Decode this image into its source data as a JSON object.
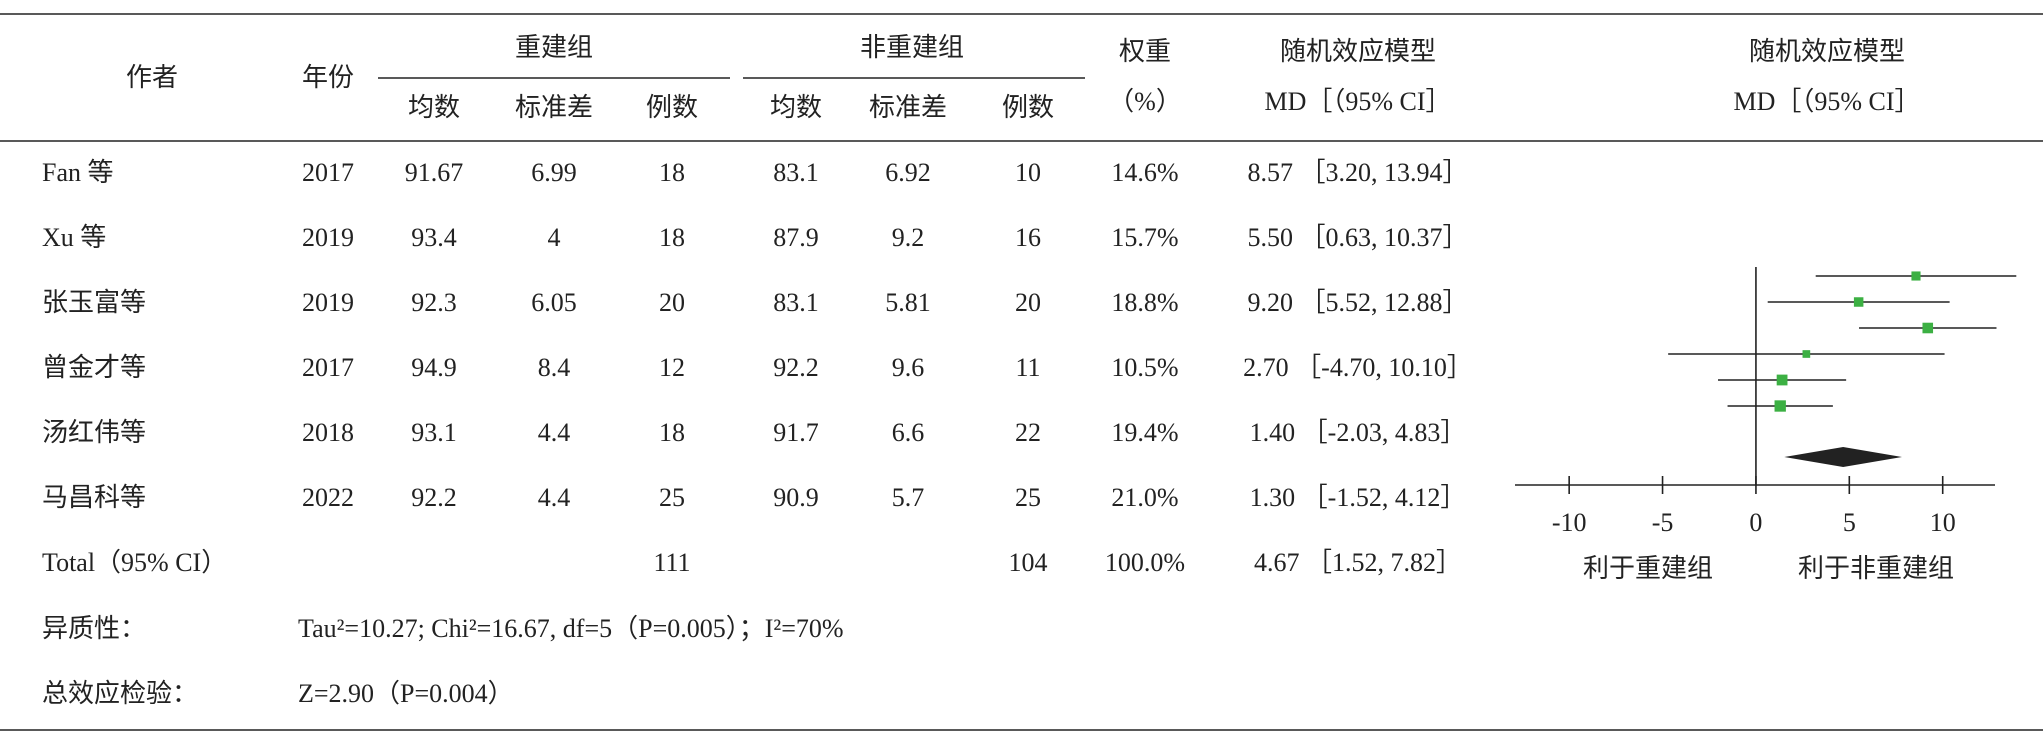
{
  "table": {
    "headers": {
      "author": "作者",
      "year": "年份",
      "group1": "重建组",
      "group2": "非重建组",
      "weight": [
        "权重",
        "（%）"
      ],
      "effect": [
        "随机效应模型",
        "MD［（95% CI］"
      ],
      "plot": [
        "随机效应模型",
        "MD［（95% CI］"
      ],
      "sub": [
        "均数",
        "标准差",
        "例数",
        "均数",
        "标准差",
        "例数"
      ]
    },
    "ci_open": "［",
    "ci_sep": ", ",
    "ci_close": "］",
    "rows": [
      {
        "author": "Fan 等",
        "year": "2017",
        "cells": [
          "91.67",
          "6.99",
          "18",
          "83.1",
          "6.92",
          "10"
        ],
        "weight": "14.6%",
        "md": "8.57",
        "lo": "3.20",
        "hi": "13.94"
      },
      {
        "author": "Xu 等",
        "year": "2019",
        "cells": [
          "93.4",
          "4",
          "18",
          "87.9",
          "9.2",
          "16"
        ],
        "weight": "15.7%",
        "md": "5.50",
        "lo": "0.63",
        "hi": "10.37"
      },
      {
        "author": "张玉富等",
        "year": "2019",
        "cells": [
          "92.3",
          "6.05",
          "20",
          "83.1",
          "5.81",
          "20"
        ],
        "weight": "18.8%",
        "md": "9.20",
        "lo": "5.52",
        "hi": "12.88"
      },
      {
        "author": "曾金才等",
        "year": "2017",
        "cells": [
          "94.9",
          "8.4",
          "12",
          "92.2",
          "9.6",
          "11"
        ],
        "weight": "10.5%",
        "md": "2.70",
        "lo": "-4.70",
        "hi": "10.10"
      },
      {
        "author": "汤红伟等",
        "year": "2018",
        "cells": [
          "93.1",
          "4.4",
          "18",
          "91.7",
          "6.6",
          "22"
        ],
        "weight": "19.4%",
        "md": "1.40",
        "lo": "-2.03",
        "hi": "4.83"
      },
      {
        "author": "马昌科等",
        "year": "2022",
        "cells": [
          "92.2",
          "4.4",
          "25",
          "90.9",
          "5.7",
          "25"
        ],
        "weight": "21.0%",
        "md": "1.30",
        "lo": "-1.52",
        "hi": "4.12"
      }
    ],
    "total": {
      "label": "Total（95% CI）",
      "n1": "111",
      "n2": "104",
      "weight": "100.0%",
      "md": "4.67",
      "lo": "1.52",
      "hi": "7.82"
    },
    "heterogeneity": {
      "label": "异质性：",
      "text": "Tau²=10.27; Chi²=16.67, df=5（P=0.005）；I²=70%"
    },
    "overall": {
      "label": "总效应检验：",
      "text": "Z=2.90（P=0.004）"
    }
  },
  "forest": {
    "xlim": [
      -12.9,
      12.8
    ],
    "xticks": [
      -10,
      -5,
      0,
      5,
      10
    ],
    "left_label": "利于重建组",
    "right_label": "利于非重建组"
  }
}
